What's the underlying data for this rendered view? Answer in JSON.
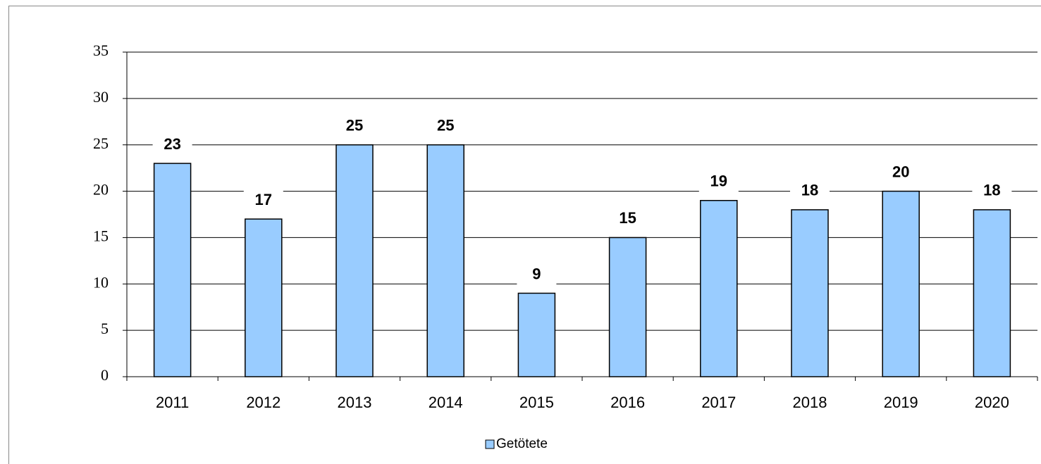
{
  "chart_data": {
    "type": "bar",
    "categories": [
      "2011",
      "2012",
      "2013",
      "2014",
      "2015",
      "2016",
      "2017",
      "2018",
      "2019",
      "2020"
    ],
    "series": [
      {
        "name": "Getötete",
        "color": "#99ccff",
        "values": [
          23,
          17,
          25,
          25,
          9,
          15,
          19,
          18,
          20,
          18
        ]
      }
    ],
    "ylim": [
      0,
      35
    ],
    "yticks": [
      0,
      5,
      10,
      15,
      20,
      25,
      30,
      35
    ],
    "grid": true,
    "legend": "bottom"
  }
}
